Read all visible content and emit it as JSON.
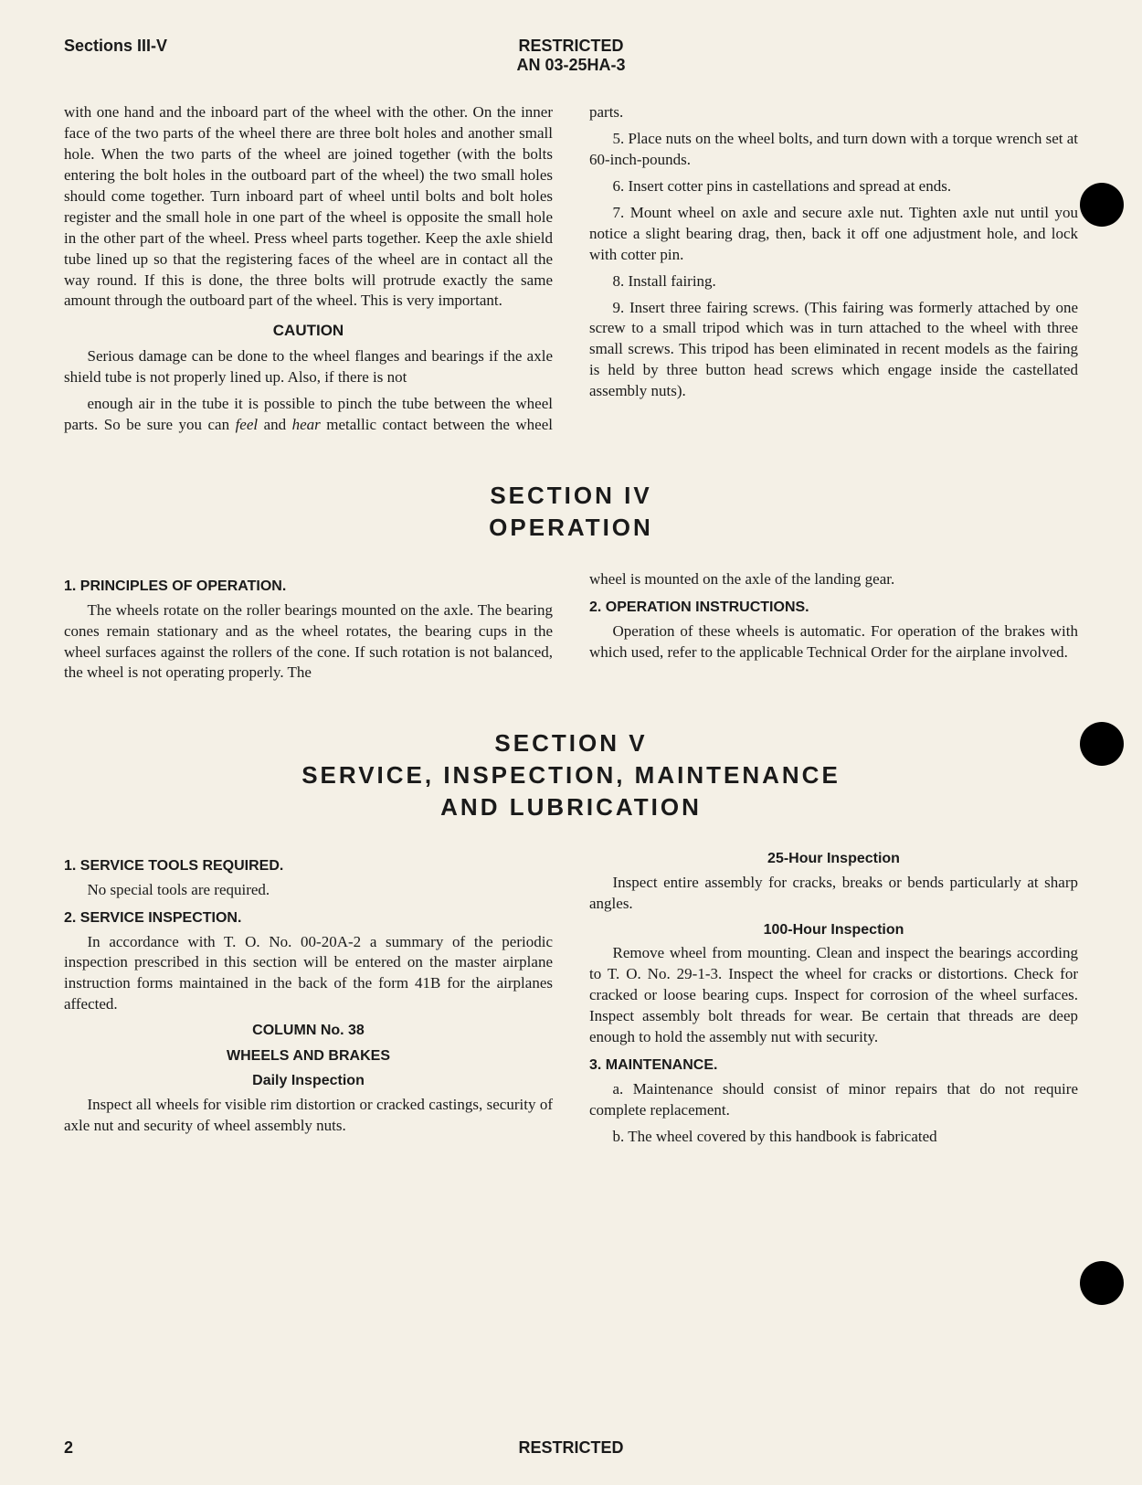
{
  "header": {
    "sections_label": "Sections III-V",
    "restricted": "RESTRICTED",
    "doc_number": "AN 03-25HA-3"
  },
  "top_block": {
    "left_para": "with one hand and the inboard part of the wheel with the other. On the inner face of the two parts of the wheel there are three bolt holes and another small hole. When the two parts of the wheel are joined together (with the bolts entering the bolt holes in the outboard part of the wheel) the two small holes should come together. Turn inboard part of wheel until bolts and bolt holes register and the small hole in one part of the wheel is opposite the small hole in the other part of the wheel. Press wheel parts together. Keep the axle shield tube lined up so that the registering faces of the wheel are in contact all the way round. If this is done, the three bolts will protrude exactly the same amount through the outboard part of the wheel. This is very important.",
    "caution_label": "CAUTION",
    "caution_text": "Serious damage can be done to the wheel flanges and bearings if the axle shield tube is not properly lined up. Also, if there is not",
    "right_cont": "enough air in the tube it is possible to pinch the tube between the wheel parts. So be sure you can feel and hear metallic contact between the wheel parts.",
    "step5": "5. Place nuts on the wheel bolts, and turn down with a torque wrench set at 60-inch-pounds.",
    "step6": "6. Insert cotter pins in castellations and spread at ends.",
    "step7": "7. Mount wheel on axle and secure axle nut. Tighten axle nut until you notice a slight bearing drag, then, back it off one adjustment hole, and lock with cotter pin.",
    "step8": "8. Install fairing.",
    "step9": "9. Insert three fairing screws. (This fairing was formerly attached by one screw to a small tripod which was in turn attached to the wheel with three small screws. This tripod has been eliminated in recent models as the fairing is held by three button head screws which engage inside the castellated assembly nuts)."
  },
  "section4": {
    "title_line1": "SECTION IV",
    "title_line2": "OPERATION",
    "h1": "1. PRINCIPLES OF OPERATION.",
    "p1": "The wheels rotate on the roller bearings mounted on the axle. The bearing cones remain stationary and as the wheel rotates, the bearing cups in the wheel surfaces against the rollers of the cone. If such rotation is not balanced, the wheel is not operating properly. The",
    "p1_cont": "wheel is mounted on the axle of the landing gear.",
    "h2": "2. OPERATION INSTRUCTIONS.",
    "p2": "Operation of these wheels is automatic. For operation of the brakes with which used, refer to the applicable Technical Order for the airplane involved."
  },
  "section5": {
    "title_line1": "SECTION V",
    "title_line2": "SERVICE, INSPECTION, MAINTENANCE",
    "title_line3": "AND LUBRICATION",
    "h1": "1. SERVICE TOOLS REQUIRED.",
    "p1": "No special tools are required.",
    "h2": "2. SERVICE INSPECTION.",
    "p2": "In accordance with T. O. No. 00-20A-2 a summary of the periodic inspection prescribed in this section will be entered on the master airplane instruction forms maintained in the back of the form 41B for the airplanes affected.",
    "col_label": "COLUMN No. 38",
    "wheels_label": "WHEELS AND BRAKES",
    "daily_label": "Daily Inspection",
    "daily_text": "Inspect all wheels for visible rim distortion or cracked castings, security of axle nut and security of wheel assembly nuts.",
    "h25": "25-Hour Inspection",
    "p25": "Inspect entire assembly for cracks, breaks or bends particularly at sharp angles.",
    "h100": "100-Hour Inspection",
    "p100": "Remove wheel from mounting. Clean and inspect the bearings according to T. O. No. 29-1-3. Inspect the wheel for cracks or distortions. Check for cracked or loose bearing cups. Inspect for corrosion of the wheel surfaces. Inspect assembly bolt threads for wear. Be certain that threads are deep enough to hold the assembly nut with security.",
    "h3": "3. MAINTENANCE.",
    "p3a": "a. Maintenance should consist of minor repairs that do not require complete replacement.",
    "p3b": "b. The wheel covered by this handbook is fabricated"
  },
  "footer": {
    "page_number": "2",
    "restricted": "RESTRICTED"
  }
}
